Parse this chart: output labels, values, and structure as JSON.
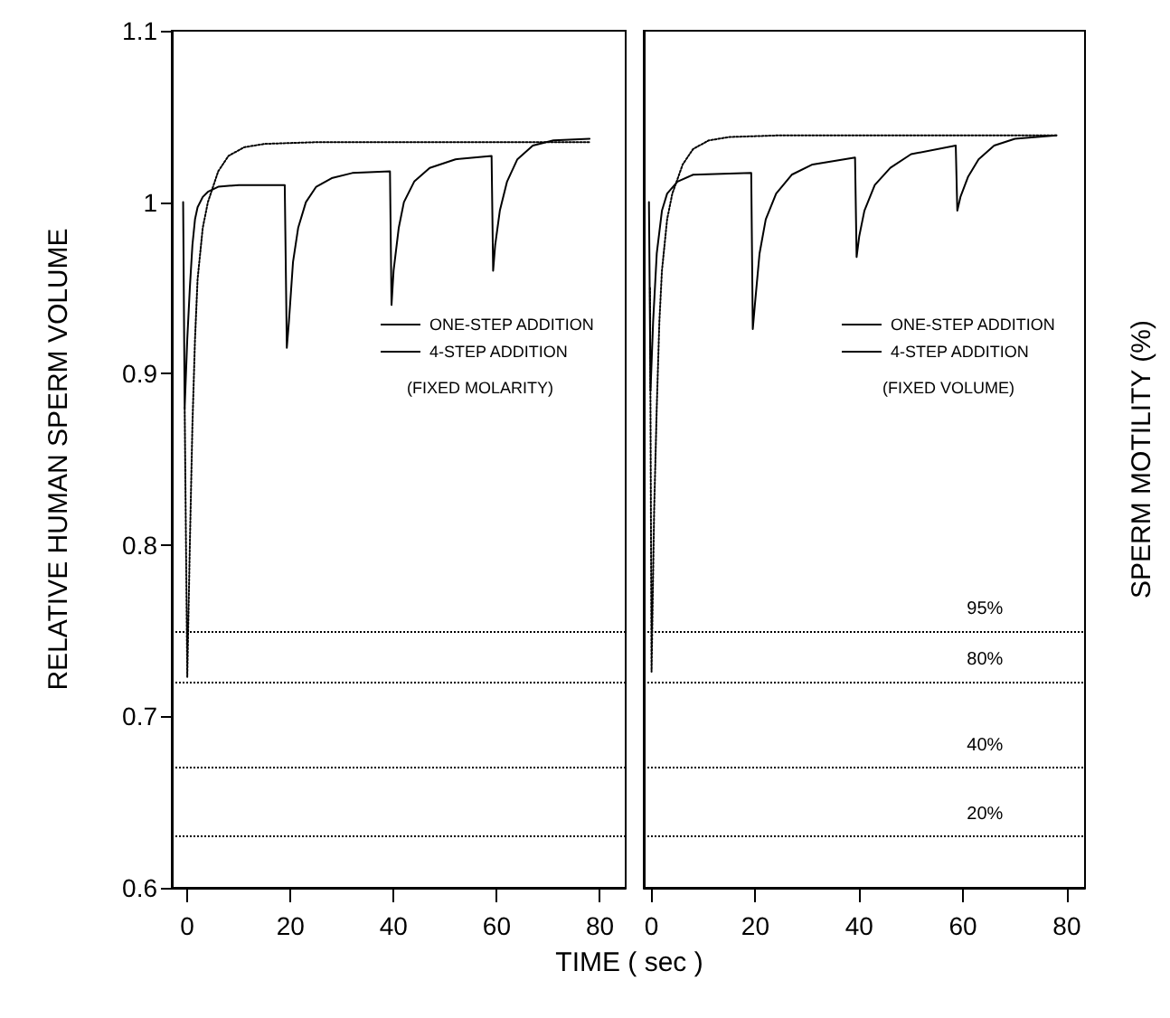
{
  "chart_data": [
    {
      "type": "line",
      "xlabel": "TIME  ( sec )",
      "ylabel": "RELATIVE HUMAN SPERM VOLUME",
      "xlim": [
        -3,
        85
      ],
      "xticks": [
        0,
        20,
        40,
        60,
        80
      ],
      "ylim": [
        0.6,
        1.1
      ],
      "yticks": [
        0.6,
        0.7,
        0.8,
        0.9,
        1.0,
        1.1
      ],
      "grid": false,
      "legend": "right",
      "annotations": [
        "(FIXED MOLARITY)"
      ],
      "series": [
        {
          "name": "ONE-STEP ADDITION",
          "color": "#000000",
          "line_style": "dotted",
          "x": [
            -0.5,
            0,
            0.5,
            1,
            1.5,
            2,
            3,
            4,
            6,
            8,
            11,
            15,
            25,
            78
          ],
          "values": [
            0.88,
            0.723,
            0.8,
            0.87,
            0.92,
            0.955,
            0.985,
            1.0,
            1.018,
            1.027,
            1.032,
            1.034,
            1.035,
            1.035
          ]
        },
        {
          "name": "4-STEP ADDITION",
          "color": "#000000",
          "line_style": "solid",
          "x": [
            -0.8,
            -0.5,
            0,
            0.5,
            1,
            1.5,
            2,
            3,
            4,
            6,
            10,
            18.9,
            19.3,
            19.7,
            20.5,
            21.5,
            23,
            25,
            28,
            32,
            39.3,
            39.6,
            40,
            41,
            42,
            44,
            47,
            52,
            59,
            59.3,
            59.7,
            60.6,
            62,
            64,
            67,
            71,
            78
          ],
          "values": [
            1.0,
            0.88,
            0.92,
            0.95,
            0.975,
            0.99,
            0.997,
            1.003,
            1.006,
            1.009,
            1.01,
            1.01,
            0.915,
            0.93,
            0.965,
            0.985,
            1.0,
            1.009,
            1.014,
            1.017,
            1.018,
            0.94,
            0.96,
            0.985,
            1.0,
            1.012,
            1.02,
            1.025,
            1.027,
            0.96,
            0.975,
            0.995,
            1.012,
            1.025,
            1.033,
            1.036,
            1.037
          ]
        }
      ],
      "ref_lines": [
        {
          "axis": "y",
          "value": 0.75,
          "label": null,
          "line_style": "dotted"
        },
        {
          "axis": "y",
          "value": 0.72,
          "label": null,
          "line_style": "dotted"
        },
        {
          "axis": "y",
          "value": 0.67,
          "label": null,
          "line_style": "dotted"
        },
        {
          "axis": "y",
          "value": 0.63,
          "label": null,
          "line_style": "dotted"
        }
      ]
    },
    {
      "type": "line",
      "y2label": "SPERM MOTILITY (%)",
      "xlim": [
        -1.5,
        83.5
      ],
      "xticks": [
        0,
        20,
        40,
        60,
        80
      ],
      "ylim": [
        0.6,
        1.1
      ],
      "tick_labels": "x",
      "grid": false,
      "legend": "right",
      "annotations": [
        "(FIXED VOLUME)",
        {
          "text": "95%",
          "y": 0.75
        },
        {
          "text": "80%",
          "y": 0.72
        },
        {
          "text": "40%",
          "y": 0.67
        },
        {
          "text": "20%",
          "y": 0.63
        }
      ],
      "series": [
        {
          "name": "ONE-STEP ADDITION",
          "color": "#000000",
          "line_style": "dotted",
          "x": [
            -0.3,
            0,
            0.5,
            1,
            1.5,
            2,
            3,
            4,
            6,
            8,
            11,
            15,
            25,
            78
          ],
          "values": [
            0.95,
            0.726,
            0.82,
            0.88,
            0.93,
            0.96,
            0.99,
            1.005,
            1.022,
            1.031,
            1.036,
            1.038,
            1.039,
            1.039
          ]
        },
        {
          "name": "4-STEP ADDITION",
          "color": "#000000",
          "line_style": "solid",
          "x": [
            -0.5,
            -0.2,
            0.3,
            1,
            2,
            3,
            5,
            8,
            19.2,
            19.5,
            19.9,
            20.8,
            22,
            24,
            27,
            31,
            39.2,
            39.5,
            40,
            41,
            43,
            46,
            50,
            58.6,
            58.9,
            59.5,
            61,
            63,
            66,
            70,
            78
          ],
          "values": [
            1.0,
            0.89,
            0.93,
            0.97,
            0.995,
            1.005,
            1.012,
            1.016,
            1.017,
            0.926,
            0.94,
            0.97,
            0.99,
            1.005,
            1.016,
            1.022,
            1.026,
            0.968,
            0.98,
            0.995,
            1.01,
            1.02,
            1.028,
            1.033,
            0.995,
            1.003,
            1.015,
            1.025,
            1.033,
            1.037,
            1.039
          ]
        }
      ],
      "ref_lines": [
        {
          "axis": "y",
          "value": 0.75,
          "line_style": "dotted"
        },
        {
          "axis": "y",
          "value": 0.72,
          "line_style": "dotted"
        },
        {
          "axis": "y",
          "value": 0.67,
          "line_style": "dotted"
        },
        {
          "axis": "y",
          "value": 0.63,
          "line_style": "dotted"
        }
      ]
    }
  ]
}
